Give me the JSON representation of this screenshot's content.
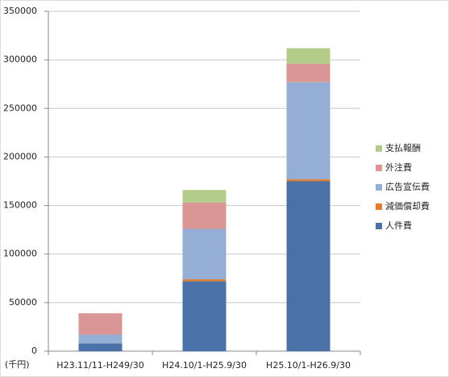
{
  "chart_data": {
    "type": "stacked_bar",
    "categories": [
      "H23.11/11-H249/30",
      "H24.10/1-H25.9/30",
      "H25.10/1-H26.9/30"
    ],
    "series": [
      {
        "name": "人件費",
        "color": "#4a72a8",
        "values": [
          8000,
          72000,
          175000
        ]
      },
      {
        "name": "減価償却費",
        "color": "#e67e30",
        "values": [
          0,
          2000,
          2000
        ]
      },
      {
        "name": "広告宣伝費",
        "color": "#95aed6",
        "values": [
          9000,
          52000,
          100000
        ]
      },
      {
        "name": "外注費",
        "color": "#d99694",
        "values": [
          22000,
          27000,
          19000
        ]
      },
      {
        "name": "支払報酬",
        "color": "#b3cc8a",
        "values": [
          0,
          13000,
          16000
        ]
      }
    ],
    "ylim": [
      0,
      350000
    ],
    "yticks": [
      0,
      50000,
      100000,
      150000,
      200000,
      250000,
      300000,
      350000
    ],
    "unit_label": "(千円)",
    "grid": true,
    "legend": "right"
  }
}
